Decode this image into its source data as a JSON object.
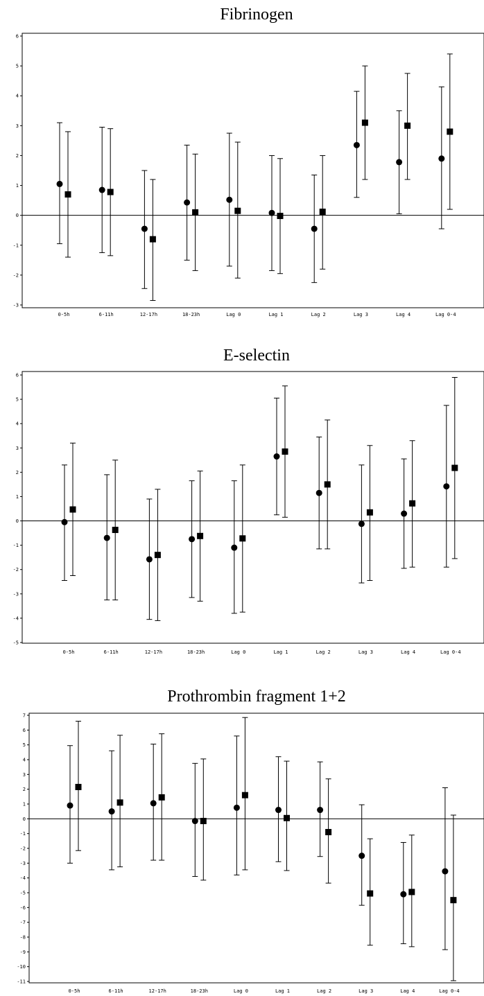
{
  "chart_data": [
    {
      "type": "scatter",
      "title": "Fibrinogen",
      "xlabel": "",
      "ylabel": "",
      "categories": [
        "0-5h",
        "6-11h",
        "12-17h",
        "18-23h",
        "Lag 0",
        "Lag 1",
        "Lag 2",
        "Lag 3",
        "Lag 4",
        "Lag 0-4"
      ],
      "ylim": [
        -3,
        6
      ],
      "yticks": [
        -3,
        -2,
        -1,
        0,
        1,
        2,
        3,
        4,
        5,
        6
      ],
      "reference_line": 0,
      "series": [
        {
          "marker": "circle",
          "values": [
            1.05,
            0.85,
            -0.45,
            0.43,
            0.52,
            0.08,
            -0.45,
            2.35,
            1.78,
            1.9
          ],
          "lower": [
            -0.95,
            -1.25,
            -2.45,
            -1.5,
            -1.7,
            -1.85,
            -2.25,
            0.6,
            0.05,
            -0.45
          ],
          "upper": [
            3.1,
            2.95,
            1.5,
            2.35,
            2.75,
            2.0,
            1.35,
            4.15,
            3.5,
            4.3
          ]
        },
        {
          "marker": "square",
          "values": [
            0.7,
            0.78,
            -0.8,
            0.1,
            0.15,
            -0.02,
            0.12,
            3.1,
            3.0,
            2.8
          ],
          "lower": [
            -1.4,
            -1.35,
            -2.85,
            -1.85,
            -2.1,
            -1.95,
            -1.8,
            1.2,
            1.2,
            0.2
          ],
          "upper": [
            2.8,
            2.9,
            1.2,
            2.05,
            2.45,
            1.9,
            2.0,
            5.0,
            4.75,
            5.4
          ]
        }
      ]
    },
    {
      "type": "scatter",
      "title": "E-selectin",
      "xlabel": "",
      "ylabel": "",
      "categories": [
        "0-5h",
        "6-11h",
        "12-17h",
        "18-23h",
        "Lag 0",
        "Lag 1",
        "Lag 2",
        "Lag 3",
        "Lag 4",
        "Lag 0-4"
      ],
      "ylim": [
        -5,
        6
      ],
      "yticks": [
        -5,
        -4,
        -3,
        -2,
        -1,
        0,
        1,
        2,
        3,
        4,
        5,
        6
      ],
      "reference_line": 0,
      "series": [
        {
          "marker": "circle",
          "values": [
            -0.05,
            -0.7,
            -1.58,
            -0.75,
            -1.1,
            2.65,
            1.15,
            -0.12,
            0.3,
            1.42
          ],
          "lower": [
            -2.45,
            -3.25,
            -4.05,
            -3.15,
            -3.8,
            0.25,
            -1.15,
            -2.55,
            -1.95,
            -1.9
          ],
          "upper": [
            2.3,
            1.9,
            0.9,
            1.65,
            1.65,
            5.05,
            3.45,
            2.3,
            2.55,
            4.75
          ]
        },
        {
          "marker": "square",
          "values": [
            0.47,
            -0.37,
            -1.4,
            -0.62,
            -0.72,
            2.85,
            1.5,
            0.35,
            0.72,
            2.18
          ],
          "lower": [
            -2.25,
            -3.25,
            -4.1,
            -3.3,
            -3.75,
            0.15,
            -1.15,
            -2.45,
            -1.9,
            -1.55
          ],
          "upper": [
            3.2,
            2.5,
            1.3,
            2.05,
            2.3,
            5.55,
            4.15,
            3.1,
            3.3,
            5.9
          ]
        }
      ]
    },
    {
      "type": "scatter",
      "title": "Prothrombin fragment 1+2",
      "xlabel": "",
      "ylabel": "",
      "categories": [
        "0-5h",
        "6-11h",
        "12-17h",
        "18-23h",
        "Lag 0",
        "Lag 1",
        "Lag 2",
        "Lag 3",
        "Lag 4",
        "Lag 0-4"
      ],
      "ylim": [
        -11,
        7
      ],
      "yticks": [
        -11,
        -10,
        -9,
        -8,
        -7,
        -6,
        -5,
        -4,
        -3,
        -2,
        -1,
        0,
        1,
        2,
        3,
        4,
        5,
        6,
        7
      ],
      "reference_line": 0,
      "series": [
        {
          "marker": "circle",
          "values": [
            0.9,
            0.5,
            1.05,
            -0.15,
            0.75,
            0.6,
            0.6,
            -2.5,
            -5.1,
            -3.55
          ],
          "lower": [
            -3.0,
            -3.45,
            -2.8,
            -3.9,
            -3.8,
            -2.9,
            -2.55,
            -5.85,
            -8.45,
            -8.85
          ],
          "upper": [
            4.95,
            4.6,
            5.05,
            3.75,
            5.6,
            4.2,
            3.85,
            0.95,
            -1.6,
            2.1
          ]
        },
        {
          "marker": "square",
          "values": [
            2.15,
            1.1,
            1.45,
            -0.15,
            1.6,
            0.05,
            -0.9,
            -5.05,
            -4.95,
            -5.5
          ],
          "lower": [
            -2.15,
            -3.25,
            -2.8,
            -4.15,
            -3.45,
            -3.5,
            -4.35,
            -8.55,
            -8.65,
            -10.95
          ],
          "upper": [
            6.6,
            5.65,
            5.75,
            4.05,
            6.85,
            3.9,
            2.7,
            -1.35,
            -1.1,
            0.25
          ]
        }
      ]
    }
  ]
}
